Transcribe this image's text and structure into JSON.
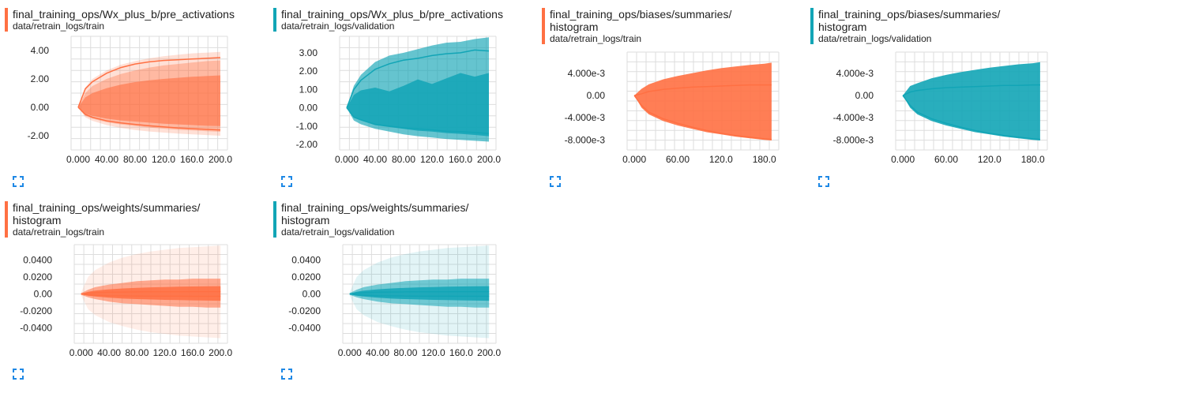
{
  "colors": {
    "train": "#ff7043",
    "validation": "#12a5b6"
  },
  "cards": [
    {
      "title": "final_training_ops/Wx_plus_b/pre_activations",
      "run": "data/retrain_logs/train",
      "expand_icon": "expand-icon",
      "chart_data": {
        "type": "area",
        "title": "final_training_ops/Wx_plus_b/pre_activations",
        "run": "train",
        "color": "#ff7043",
        "xlim": [
          -10,
          210
        ],
        "ylim": [
          -3.0,
          5.0
        ],
        "x_ticks": [
          "0.000",
          "40.00",
          "80.00",
          "120.0",
          "160.0",
          "200.0"
        ],
        "y_ticks": [
          "4.00",
          "2.00",
          "0.00",
          "-2.00"
        ],
        "x_tick_values": [
          0,
          40,
          80,
          120,
          160,
          200
        ],
        "y_tick_values": [
          4,
          2,
          0,
          -2
        ],
        "grid": true,
        "x": [
          0,
          10,
          20,
          40,
          60,
          80,
          100,
          120,
          140,
          160,
          180,
          200
        ],
        "bands": [
          {
            "low": [
              0,
              -0.7,
              -0.95,
              -1.25,
              -1.45,
              -1.6,
              -1.7,
              -1.78,
              -1.85,
              -1.9,
              -1.95,
              -2.0
            ],
            "high": [
              0,
              1.4,
              2.0,
              2.6,
              3.0,
              3.25,
              3.45,
              3.6,
              3.7,
              3.8,
              3.85,
              3.9
            ],
            "opacity": 0.22
          },
          {
            "low": [
              0,
              -0.6,
              -0.8,
              -1.05,
              -1.2,
              -1.32,
              -1.42,
              -1.5,
              -1.58,
              -1.62,
              -1.68,
              -1.72
            ],
            "high": [
              0,
              1.0,
              1.5,
              2.0,
              2.35,
              2.6,
              2.8,
              2.95,
              3.05,
              3.15,
              3.25,
              3.3
            ],
            "opacity": 0.35
          },
          {
            "low": [
              0,
              -0.45,
              -0.6,
              -0.8,
              -0.92,
              -1.0,
              -1.08,
              -1.15,
              -1.2,
              -1.25,
              -1.3,
              -1.32
            ],
            "high": [
              0,
              0.7,
              1.0,
              1.35,
              1.6,
              1.78,
              1.9,
              2.0,
              2.08,
              2.15,
              2.2,
              2.25
            ],
            "opacity": 0.6
          }
        ],
        "lines": [
          [
            0,
            1.3,
            1.8,
            2.4,
            2.8,
            3.05,
            3.2,
            3.3,
            3.35,
            3.4,
            3.45,
            3.5
          ],
          [
            0,
            -0.5,
            -0.7,
            -0.95,
            -1.1,
            -1.2,
            -1.3,
            -1.38,
            -1.45,
            -1.5,
            -1.55,
            -1.6
          ]
        ]
      }
    },
    {
      "title": "final_training_ops/Wx_plus_b/pre_activations",
      "run": "data/retrain_logs/validation",
      "expand_icon": "expand-icon",
      "chart_data": {
        "type": "area",
        "title": "final_training_ops/Wx_plus_b/pre_activations",
        "run": "validation",
        "color": "#12a5b6",
        "xlim": [
          -10,
          210
        ],
        "ylim": [
          -2.3,
          3.9
        ],
        "x_ticks": [
          "0.000",
          "40.00",
          "80.00",
          "120.0",
          "160.0",
          "200.0"
        ],
        "y_ticks": [
          "3.00",
          "2.00",
          "1.00",
          "0.00",
          "-1.00",
          "-2.00"
        ],
        "x_tick_values": [
          0,
          40,
          80,
          120,
          160,
          200
        ],
        "y_tick_values": [
          3,
          2,
          1,
          0,
          -1,
          -2
        ],
        "grid": true,
        "x": [
          0,
          10,
          20,
          40,
          60,
          80,
          100,
          120,
          140,
          160,
          180,
          200
        ],
        "bands": [
          {
            "low": [
              0,
              -0.7,
              -0.9,
              -1.15,
              -1.3,
              -1.45,
              -1.55,
              -1.62,
              -1.7,
              -1.75,
              -1.8,
              -1.85
            ],
            "high": [
              0,
              1.2,
              1.8,
              2.5,
              2.85,
              3.0,
              3.2,
              3.4,
              3.55,
              3.6,
              3.75,
              3.85
            ],
            "opacity": 0.65
          },
          {
            "low": [
              0,
              -0.55,
              -0.7,
              -0.95,
              -1.05,
              -1.15,
              -1.25,
              -1.3,
              -1.38,
              -1.42,
              -1.48,
              -1.55
            ],
            "high": [
              0,
              0.7,
              0.95,
              1.1,
              0.9,
              1.2,
              1.55,
              1.3,
              1.6,
              1.9,
              1.7,
              1.9
            ],
            "opacity": 0.85
          }
        ],
        "lines": [
          [
            0,
            1.0,
            1.5,
            2.1,
            2.4,
            2.6,
            2.7,
            2.85,
            2.95,
            3.0,
            3.15,
            3.1
          ],
          [
            0,
            -0.5,
            -0.65,
            -0.9,
            -1.0,
            -1.1,
            -1.15,
            -1.2,
            -1.28,
            -1.3,
            -1.35,
            -1.4
          ]
        ]
      }
    },
    {
      "title": "final_training_ops/biases/summaries/\nhistogram",
      "run": "data/retrain_logs/train",
      "expand_icon": "expand-icon",
      "chart_data": {
        "type": "area",
        "title": "final_training_ops/biases/summaries/histogram",
        "run": "train",
        "color": "#ff7043",
        "xlim": [
          -10,
          200
        ],
        "ylim": [
          -0.0098,
          0.0078
        ],
        "x_ticks": [
          "0.000",
          "60.00",
          "120.0",
          "180.0"
        ],
        "y_ticks": [
          "4.000e-3",
          "0.00",
          "-4.000e-3",
          "-8.000e-3"
        ],
        "x_tick_values": [
          0,
          60,
          120,
          180
        ],
        "y_tick_values": [
          0.004,
          0,
          -0.004,
          -0.008
        ],
        "grid": true,
        "x": [
          0,
          10,
          20,
          40,
          60,
          80,
          100,
          120,
          140,
          160,
          180,
          190
        ],
        "bands": [
          {
            "low": [
              0,
              -0.0022,
              -0.0034,
              -0.0046,
              -0.0054,
              -0.006,
              -0.0066,
              -0.007,
              -0.0074,
              -0.0077,
              -0.008,
              -0.0081
            ],
            "high": [
              0,
              0.0012,
              0.002,
              0.0029,
              0.0035,
              0.004,
              0.0045,
              0.0049,
              0.0052,
              0.0055,
              0.0057,
              0.0059
            ],
            "opacity": 0.9
          }
        ],
        "lines": [
          [
            0,
            0.0003,
            0.0007,
            0.0011,
            0.0013,
            0.0015,
            0.0016,
            0.0017,
            0.0018,
            0.0019,
            0.0019,
            0.0019
          ],
          [
            0,
            -0.0018,
            -0.003,
            -0.0042,
            -0.005,
            -0.0057,
            -0.0063,
            -0.0068,
            -0.0072,
            -0.0075,
            -0.0078,
            -0.0079
          ]
        ]
      }
    },
    {
      "title": "final_training_ops/biases/summaries/\nhistogram",
      "run": "data/retrain_logs/validation",
      "expand_icon": "expand-icon",
      "chart_data": {
        "type": "area",
        "title": "final_training_ops/biases/summaries/histogram",
        "run": "validation",
        "color": "#12a5b6",
        "xlim": [
          -10,
          200
        ],
        "ylim": [
          -0.0098,
          0.0078
        ],
        "x_ticks": [
          "0.000",
          "60.00",
          "120.0",
          "180.0"
        ],
        "y_ticks": [
          "4.000e-3",
          "0.00",
          "-4.000e-3",
          "-8.000e-3"
        ],
        "x_tick_values": [
          0,
          60,
          120,
          180
        ],
        "y_tick_values": [
          0.004,
          0,
          -0.004,
          -0.008
        ],
        "grid": true,
        "x": [
          0,
          10,
          20,
          40,
          60,
          80,
          100,
          120,
          140,
          160,
          180,
          190
        ],
        "bands": [
          {
            "low": [
              0,
              -0.0022,
              -0.0034,
              -0.0046,
              -0.0054,
              -0.006,
              -0.0066,
              -0.007,
              -0.0074,
              -0.0077,
              -0.008,
              -0.0081
            ],
            "high": [
              0,
              0.0017,
              0.0022,
              0.0031,
              0.0037,
              0.0042,
              0.0046,
              0.005,
              0.0053,
              0.0056,
              0.0058,
              0.006
            ],
            "opacity": 0.9
          }
        ],
        "lines": [
          [
            0,
            0.0006,
            0.0009,
            0.0012,
            0.0014,
            0.0015,
            0.0016,
            0.0017,
            0.0018,
            0.0018,
            0.0019,
            0.0019
          ],
          [
            0,
            -0.0018,
            -0.003,
            -0.0042,
            -0.005,
            -0.0057,
            -0.0063,
            -0.0068,
            -0.0072,
            -0.0075,
            -0.0078,
            -0.0079
          ]
        ]
      }
    },
    {
      "title": "final_training_ops/weights/summaries/\nhistogram",
      "run": "data/retrain_logs/train",
      "expand_icon": "expand-icon",
      "chart_data": {
        "type": "area",
        "title": "final_training_ops/weights/summaries/histogram",
        "run": "train",
        "color": "#ff7043",
        "xlim": [
          -10,
          210
        ],
        "ylim": [
          -0.058,
          0.058
        ],
        "x_ticks": [
          "0.000",
          "40.00",
          "80.00",
          "120.0",
          "160.0",
          "200.0"
        ],
        "y_ticks": [
          "0.0400",
          "0.0200",
          "0.00",
          "-0.0200",
          "-0.0400"
        ],
        "x_tick_values": [
          0,
          40,
          80,
          120,
          160,
          200
        ],
        "y_tick_values": [
          0.04,
          0.02,
          0,
          -0.02,
          -0.04
        ],
        "grid": true,
        "x": [
          0,
          10,
          20,
          40,
          60,
          80,
          100,
          120,
          140,
          160,
          180,
          200
        ],
        "bands": [
          {
            "low": [
              -0.002,
              -0.018,
              -0.025,
              -0.033,
              -0.038,
              -0.042,
              -0.045,
              -0.047,
              -0.049,
              -0.05,
              -0.051,
              -0.052
            ],
            "high": [
              0.002,
              0.02,
              0.028,
              0.037,
              0.043,
              0.047,
              0.05,
              0.052,
              0.054,
              0.055,
              0.056,
              0.057
            ],
            "opacity": 0.12
          },
          {
            "low": [
              -0.001,
              -0.004,
              -0.006,
              -0.009,
              -0.011,
              -0.012,
              -0.013,
              -0.014,
              -0.015,
              -0.015,
              -0.016,
              -0.016
            ],
            "high": [
              0.001,
              0.005,
              0.008,
              0.011,
              0.013,
              0.015,
              0.016,
              0.017,
              0.017,
              0.018,
              0.018,
              0.018
            ],
            "opacity": 0.55
          },
          {
            "low": [
              -0.0005,
              -0.002,
              -0.003,
              -0.0045,
              -0.0055,
              -0.006,
              -0.0065,
              -0.007,
              -0.0072,
              -0.0075,
              -0.0078,
              -0.008
            ],
            "high": [
              0.0005,
              0.0025,
              0.004,
              0.0055,
              0.0065,
              0.0072,
              0.0078,
              0.0082,
              0.0085,
              0.0088,
              0.009,
              0.0092
            ],
            "opacity": 0.85
          }
        ],
        "lines": [
          [
            0,
            0.001,
            0.0015,
            0.002,
            0.0022,
            0.0024,
            0.0025,
            0.0026,
            0.0026,
            0.0027,
            0.0027,
            0.0027
          ],
          [
            0,
            -0.001,
            -0.0015,
            -0.002,
            -0.0022,
            -0.0024,
            -0.0025,
            -0.0026,
            -0.0026,
            -0.0027,
            -0.0027,
            -0.0027
          ]
        ]
      }
    },
    {
      "title": "final_training_ops/weights/summaries/\nhistogram",
      "run": "data/retrain_logs/validation",
      "expand_icon": "expand-icon",
      "chart_data": {
        "type": "area",
        "title": "final_training_ops/weights/summaries/histogram",
        "run": "validation",
        "color": "#12a5b6",
        "xlim": [
          -10,
          210
        ],
        "ylim": [
          -0.058,
          0.058
        ],
        "x_ticks": [
          "0.000",
          "40.00",
          "80.00",
          "120.0",
          "160.0",
          "200.0"
        ],
        "y_ticks": [
          "0.0400",
          "0.0200",
          "0.00",
          "-0.0200",
          "-0.0400"
        ],
        "x_tick_values": [
          0,
          40,
          80,
          120,
          160,
          200
        ],
        "y_tick_values": [
          0.04,
          0.02,
          0,
          -0.02,
          -0.04
        ],
        "grid": true,
        "x": [
          0,
          10,
          20,
          40,
          60,
          80,
          100,
          120,
          140,
          160,
          180,
          200
        ],
        "bands": [
          {
            "low": [
              -0.002,
              -0.018,
              -0.025,
              -0.033,
              -0.038,
              -0.042,
              -0.045,
              -0.047,
              -0.049,
              -0.05,
              -0.051,
              -0.052
            ],
            "high": [
              0.002,
              0.02,
              0.028,
              0.037,
              0.043,
              0.047,
              0.05,
              0.052,
              0.054,
              0.055,
              0.056,
              0.057
            ],
            "opacity": 0.12
          },
          {
            "low": [
              -0.001,
              -0.004,
              -0.006,
              -0.009,
              -0.011,
              -0.012,
              -0.013,
              -0.014,
              -0.015,
              -0.015,
              -0.016,
              -0.016
            ],
            "high": [
              0.001,
              0.005,
              0.008,
              0.011,
              0.013,
              0.015,
              0.016,
              0.017,
              0.017,
              0.018,
              0.018,
              0.018
            ],
            "opacity": 0.55
          },
          {
            "low": [
              -0.0005,
              -0.002,
              -0.003,
              -0.0045,
              -0.0055,
              -0.006,
              -0.0065,
              -0.007,
              -0.0072,
              -0.0075,
              -0.0078,
              -0.008
            ],
            "high": [
              0.0005,
              0.0025,
              0.004,
              0.0055,
              0.0065,
              0.0072,
              0.0078,
              0.0082,
              0.0085,
              0.0088,
              0.009,
              0.0092
            ],
            "opacity": 0.85
          }
        ],
        "lines": [
          [
            0,
            0.001,
            0.0015,
            0.002,
            0.0022,
            0.0024,
            0.0025,
            0.0026,
            0.0026,
            0.0027,
            0.0027,
            0.0027
          ],
          [
            0,
            -0.001,
            -0.0015,
            -0.002,
            -0.0022,
            -0.0024,
            -0.0025,
            -0.0026,
            -0.0026,
            -0.0027,
            -0.0027,
            -0.0027
          ]
        ]
      }
    }
  ]
}
